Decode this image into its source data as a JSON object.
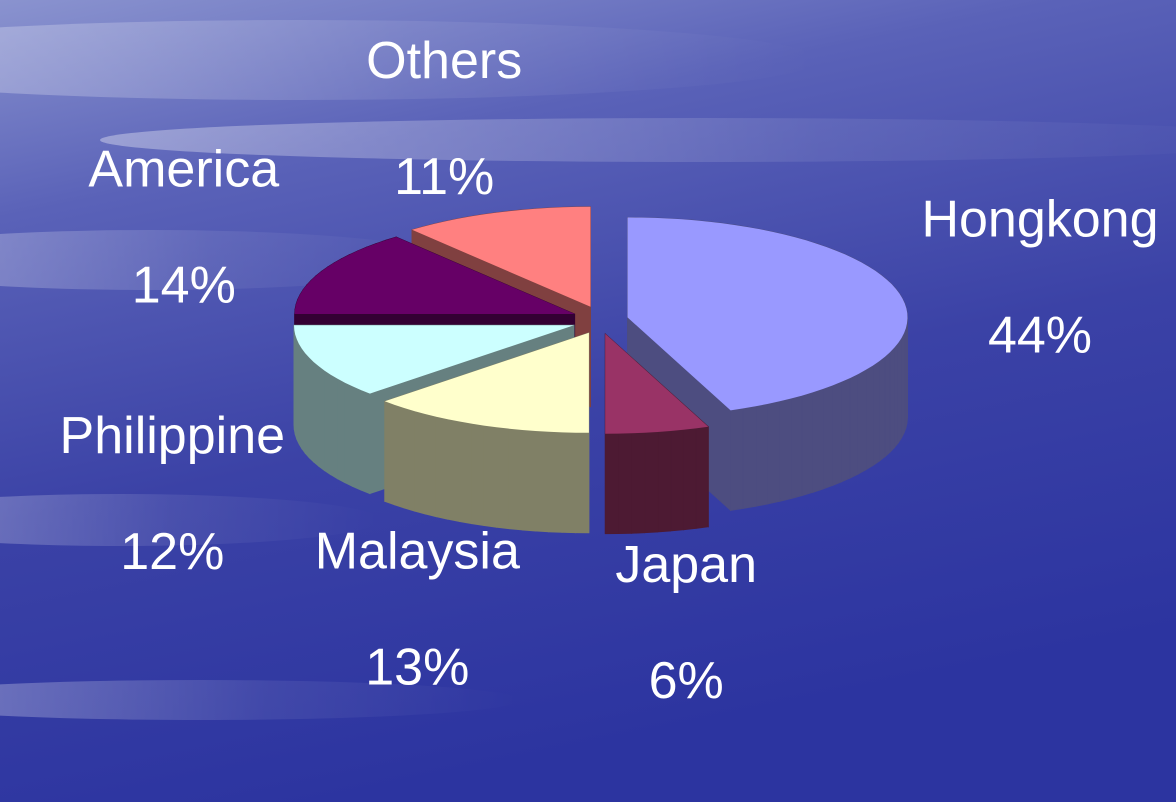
{
  "chart_data": {
    "type": "pie",
    "categories": [
      "Hongkong",
      "Japan",
      "Malaysia",
      "Philippine",
      "America",
      "Others"
    ],
    "values": [
      44,
      6,
      13,
      12,
      14,
      11
    ],
    "value_labels": [
      "44%",
      "6%",
      "13%",
      "12%",
      "14%",
      "11%"
    ],
    "colors": [
      "#9999ff",
      "#993366",
      "#ffffcc",
      "#ccffff",
      "#660066",
      "#ff8080"
    ]
  }
}
